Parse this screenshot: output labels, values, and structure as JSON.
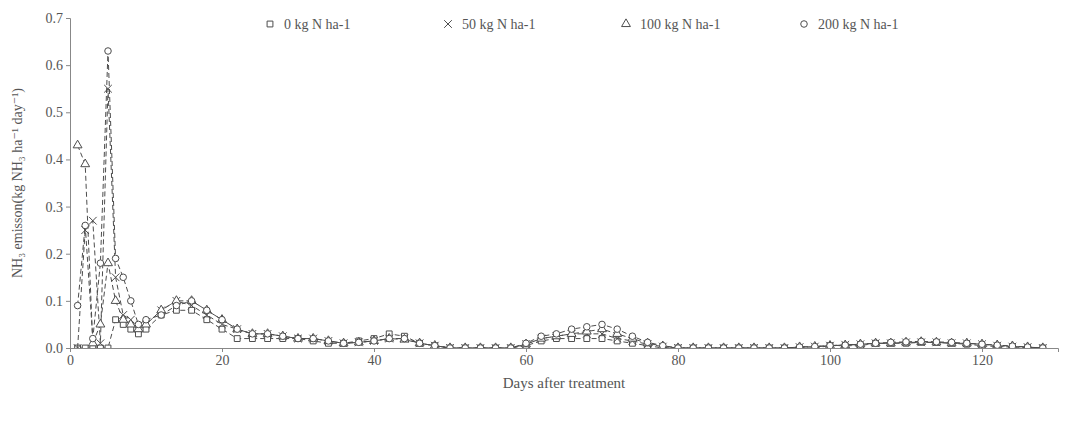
{
  "chart_data": {
    "type": "line",
    "x_label": "Days after treatment",
    "y_label": "NH₃ emisson(kg NH₃ ha⁻¹ day⁻¹)",
    "x": [
      1,
      2,
      3,
      4,
      5,
      6,
      7,
      8,
      9,
      10,
      12,
      14,
      16,
      18,
      20,
      22,
      24,
      26,
      28,
      30,
      32,
      34,
      36,
      38,
      40,
      42,
      44,
      46,
      48,
      50,
      52,
      54,
      56,
      58,
      60,
      62,
      64,
      66,
      68,
      70,
      72,
      74,
      76,
      78,
      80,
      82,
      84,
      86,
      88,
      90,
      92,
      94,
      96,
      98,
      100,
      102,
      104,
      106,
      108,
      110,
      112,
      114,
      116,
      118,
      120,
      122,
      124,
      126,
      128
    ],
    "series": [
      {
        "name": "0 kg N ha-1",
        "color": "#4d4d4d",
        "marker": "square",
        "line_style": "dashed",
        "values": [
          0,
          0,
          0,
          0,
          0,
          0.06,
          0.05,
          0.04,
          0.03,
          0.04,
          0.07,
          0.08,
          0.08,
          0.06,
          0.04,
          0.02,
          0.02,
          0.02,
          0.02,
          0.02,
          0.015,
          0.01,
          0.01,
          0.015,
          0.02,
          0.03,
          0.025,
          0.01,
          0.005,
          0,
          0,
          0,
          0,
          0,
          0.005,
          0.015,
          0.02,
          0.02,
          0.02,
          0.02,
          0.015,
          0.01,
          0.005,
          0,
          0,
          0,
          0,
          0,
          0,
          0,
          0,
          0,
          0,
          0,
          0.005,
          0.005,
          0.005,
          0.01,
          0.01,
          0.01,
          0.012,
          0.012,
          0.01,
          0.008,
          0.005,
          0.003,
          0.002,
          0.001,
          0
        ]
      },
      {
        "name": "50 kg N ha-1",
        "color": "#4d4d4d",
        "marker": "x",
        "line_style": "dashed",
        "values": [
          0,
          0.25,
          0.27,
          0.01,
          0.55,
          0.15,
          0.07,
          0.06,
          0.04,
          0.05,
          0.08,
          0.1,
          0.09,
          0.07,
          0.05,
          0.04,
          0.03,
          0.03,
          0.025,
          0.02,
          0.02,
          0.015,
          0.01,
          0.012,
          0.015,
          0.02,
          0.02,
          0.01,
          0.005,
          0,
          0,
          0,
          0,
          0,
          0.008,
          0.02,
          0.025,
          0.03,
          0.03,
          0.03,
          0.02,
          0.015,
          0.008,
          0.003,
          0,
          0,
          0,
          0,
          0,
          0,
          0,
          0,
          0.002,
          0.003,
          0.005,
          0.007,
          0.008,
          0.01,
          0.01,
          0.012,
          0.012,
          0.012,
          0.01,
          0.01,
          0.008,
          0.005,
          0.003,
          0.002,
          0
        ]
      },
      {
        "name": "100 kg N ha-1",
        "color": "#4d4d4d",
        "marker": "triangle",
        "line_style": "dashed",
        "values": [
          0.43,
          0.39,
          0.01,
          0.05,
          0.18,
          0.1,
          0.06,
          0.05,
          0.04,
          0.05,
          0.08,
          0.1,
          0.1,
          0.08,
          0.06,
          0.04,
          0.03,
          0.03,
          0.025,
          0.02,
          0.02,
          0.015,
          0.01,
          0.012,
          0.015,
          0.02,
          0.018,
          0.01,
          0.005,
          0,
          0,
          0,
          0,
          0,
          0.008,
          0.02,
          0.025,
          0.03,
          0.035,
          0.04,
          0.03,
          0.02,
          0.01,
          0.004,
          0,
          0,
          0,
          0,
          0,
          0,
          0,
          0,
          0.002,
          0.003,
          0.005,
          0.006,
          0.008,
          0.01,
          0.01,
          0.012,
          0.013,
          0.012,
          0.01,
          0.01,
          0.008,
          0.006,
          0.004,
          0.002,
          0
        ]
      },
      {
        "name": "200 kg N ha-1",
        "color": "#4d4d4d",
        "marker": "circle",
        "line_style": "dashed",
        "values": [
          0.09,
          0.26,
          0.02,
          0.18,
          0.63,
          0.19,
          0.15,
          0.1,
          0.05,
          0.06,
          0.07,
          0.09,
          0.1,
          0.08,
          0.06,
          0.04,
          0.03,
          0.03,
          0.025,
          0.02,
          0.02,
          0.015,
          0.01,
          0.012,
          0.015,
          0.02,
          0.02,
          0.01,
          0.005,
          0,
          0,
          0,
          0,
          0,
          0.01,
          0.025,
          0.03,
          0.04,
          0.045,
          0.05,
          0.04,
          0.025,
          0.012,
          0.005,
          0,
          0,
          0,
          0,
          0,
          0,
          0,
          0,
          0.002,
          0.003,
          0.005,
          0.006,
          0.008,
          0.01,
          0.012,
          0.013,
          0.014,
          0.013,
          0.012,
          0.01,
          0.008,
          0.006,
          0.004,
          0.002,
          0
        ]
      }
    ],
    "xlim": [
      0,
      130
    ],
    "xticks": [
      0,
      20,
      40,
      60,
      80,
      100,
      120
    ],
    "ylim": [
      0,
      0.7
    ],
    "yticks": [
      {
        "value": 0,
        "label": "0.0"
      },
      0.1,
      0.2,
      0.3,
      0.4,
      0.5,
      0.6,
      0.7
    ],
    "grid": false,
    "legend": "top"
  }
}
